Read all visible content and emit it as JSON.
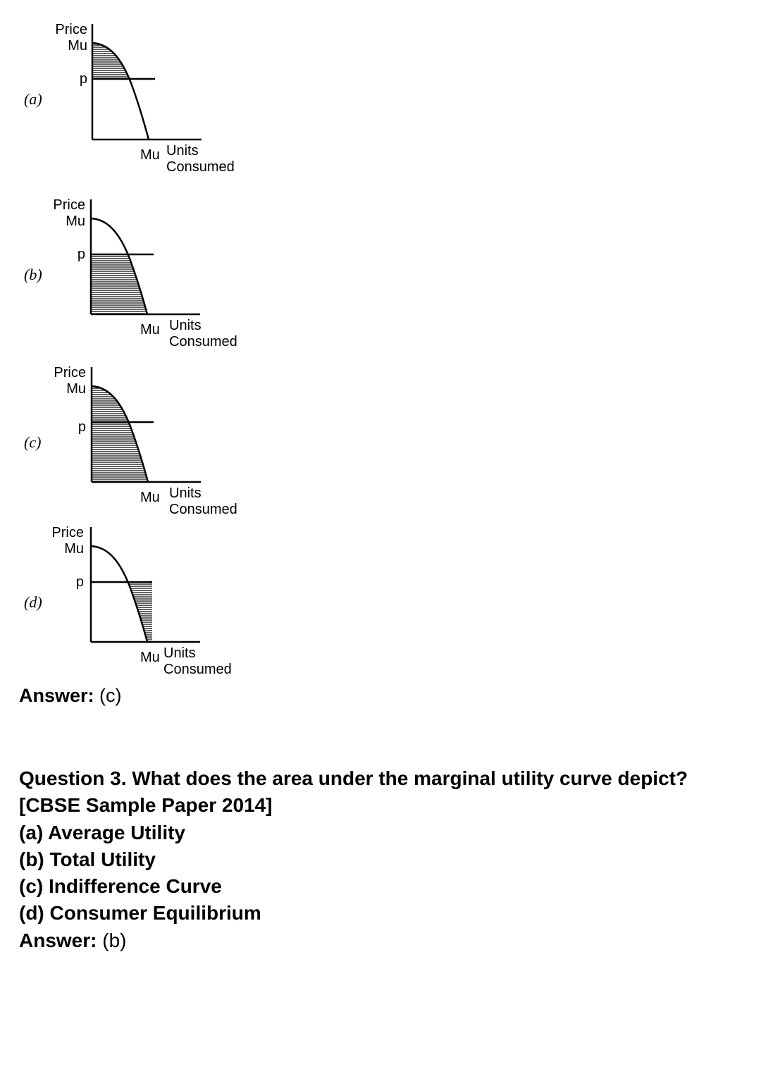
{
  "figures": [
    {
      "letter": "(a)",
      "price": "Price",
      "mu_y": "Mu",
      "p": "p",
      "mu_x": "Mu",
      "units": "Units",
      "consumed": "Consumed",
      "shading": "above-price"
    },
    {
      "letter": "(b)",
      "price": "Price",
      "mu_y": "Mu",
      "p": "p",
      "mu_x": "Mu",
      "units": "Units",
      "consumed": "Consumed",
      "shading": "below-price"
    },
    {
      "letter": "(c)",
      "price": "Price",
      "mu_y": "Mu",
      "p": "p",
      "mu_x": "Mu",
      "units": "Units",
      "consumed": "Consumed",
      "shading": "full-area"
    },
    {
      "letter": "(d)",
      "price": "Price",
      "mu_y": "Mu",
      "p": "p",
      "mu_x": "Mu",
      "units": "Units",
      "consumed": "Consumed",
      "shading": "right-of-curve"
    }
  ],
  "answer1": {
    "label": "Answer:",
    "value": "(c)"
  },
  "question3": {
    "text": "Question 3. What does the area under the marginal utility curve depict?",
    "source": "[CBSE Sample Paper 2014]",
    "options": [
      "(a) Average Utility",
      "(b) Total Utility",
      "(c) Indifference Curve",
      "(d) Consumer Equilibrium"
    ],
    "answer_label": "Answer:",
    "answer_value": "(b)"
  }
}
